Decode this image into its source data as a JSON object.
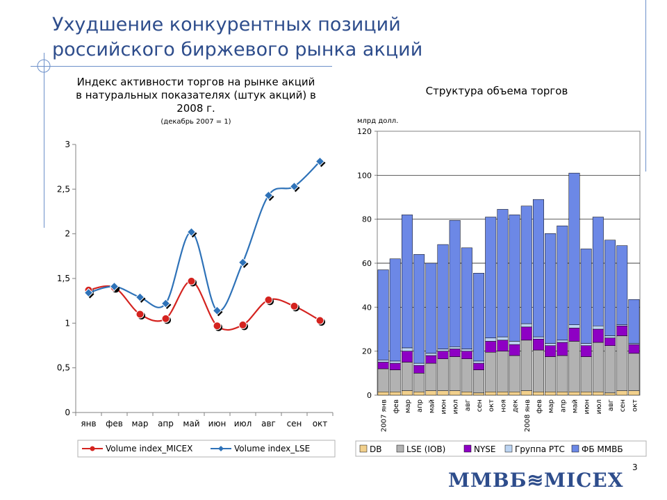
{
  "slide": {
    "title_line1": "Ухудшение конкурентных позиций",
    "title_line2": "российского биржевого рынка акций",
    "page_number": "3",
    "logo_text": "ММВБ≋MICEX"
  },
  "chart_data": [
    {
      "type": "line",
      "title_lines": [
        "Индекс активности торгов на рынке акций",
        "в натуральных показателях (штук акций) в",
        "2008 г."
      ],
      "subtitle": "(декабрь 2007 = 1)",
      "categories": [
        "янв",
        "фев",
        "мар",
        "апр",
        "май",
        "июн",
        "июл",
        "авг",
        "сен",
        "окт"
      ],
      "y_ticks": [
        "0",
        "0,5",
        "1",
        "1,5",
        "2",
        "2,5",
        "3"
      ],
      "ylim": [
        0,
        3
      ],
      "grid": false,
      "legend_position": "bottom",
      "series": [
        {
          "name": "Volume index_MICEX",
          "color": "#d4231f",
          "marker": "circle",
          "values": [
            1.37,
            1.4,
            1.1,
            1.05,
            1.47,
            0.97,
            0.98,
            1.26,
            1.19,
            1.03
          ]
        },
        {
          "name": "Volume index_LSE",
          "color": "#2e72b8",
          "marker": "diamond",
          "values": [
            1.34,
            1.41,
            1.29,
            1.22,
            2.02,
            1.14,
            1.68,
            2.43,
            2.53,
            2.81
          ]
        }
      ]
    },
    {
      "type": "bar",
      "stacked": true,
      "title": "Структура объема торгов",
      "ylabel": "млрд долл.",
      "y_ticks": [
        "0",
        "20",
        "40",
        "60",
        "80",
        "100",
        "120"
      ],
      "ylim": [
        0,
        120
      ],
      "grid": true,
      "legend_position": "bottom",
      "categories": [
        "2007 янв",
        "фев",
        "мар",
        "апр",
        "май",
        "июн",
        "июл",
        "авг",
        "сен",
        "окт",
        "ноя",
        "дек",
        "2008 янв",
        "фев",
        "мар",
        "апр",
        "май",
        "июн",
        "июл",
        "авг",
        "сен",
        "окт"
      ],
      "series": [
        {
          "name": "DB",
          "color": "#f2d08c",
          "values": [
            1.5,
            1.5,
            2.0,
            1.5,
            2.0,
            2.0,
            2.0,
            1.5,
            1.0,
            1.5,
            1.5,
            1.5,
            2.0,
            1.5,
            1.5,
            1.5,
            1.5,
            1.5,
            1.5,
            1.0,
            2.0,
            2.0
          ]
        },
        {
          "name": "LSE (IOB)",
          "color": "#b2b2b2",
          "values": [
            10.5,
            10.0,
            13.0,
            8.5,
            12.5,
            14.5,
            15.5,
            15.0,
            10.5,
            18.0,
            18.5,
            16.5,
            23.0,
            19.0,
            16.0,
            16.5,
            23.0,
            16.0,
            22.5,
            21.5,
            25.0,
            17.0
          ]
        },
        {
          "name": "NYSE",
          "color": "#8e00c4",
          "values": [
            3.0,
            3.0,
            5.0,
            3.5,
            3.5,
            3.5,
            3.5,
            3.5,
            3.0,
            5.0,
            5.0,
            5.0,
            6.0,
            5.0,
            5.0,
            6.0,
            6.0,
            5.0,
            6.0,
            3.5,
            4.5,
            4.0
          ]
        },
        {
          "name": "Группа РТС",
          "color": "#bcd4f2",
          "values": [
            1.0,
            1.0,
            1.5,
            1.0,
            1.0,
            1.0,
            1.0,
            1.0,
            1.0,
            1.5,
            1.5,
            1.5,
            1.5,
            1.0,
            1.0,
            1.0,
            1.5,
            1.0,
            1.5,
            1.0,
            0.5,
            0.5
          ]
        },
        {
          "name": "ФБ ММВБ",
          "color": "#6c88e6",
          "values": [
            41.0,
            46.5,
            60.5,
            49.5,
            41.0,
            47.5,
            57.5,
            46.0,
            40.0,
            55.0,
            58.0,
            57.5,
            53.5,
            62.5,
            50.0,
            52.0,
            69.0,
            43.0,
            49.5,
            43.5,
            36.0,
            20.0
          ]
        }
      ]
    }
  ]
}
